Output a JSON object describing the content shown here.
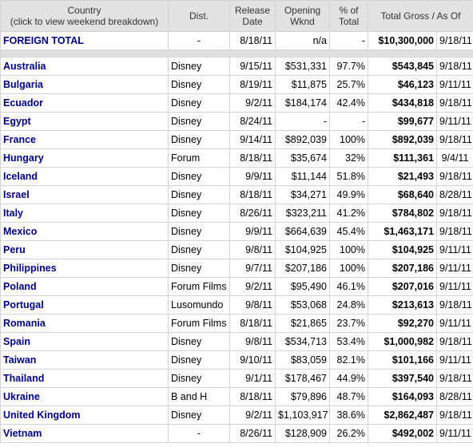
{
  "table": {
    "header": {
      "country": "Country",
      "country_note": "(click to view weekend breakdown)",
      "dist": "Dist.",
      "release": "Release Date",
      "opening": "Opening Wknd",
      "pct": "% of Total",
      "total": "Total Gross / As Of"
    },
    "total_row": [
      "FOREIGN TOTAL",
      "-",
      "8/18/11",
      "n/a",
      "-",
      "$10,300,000",
      "9/18/11"
    ],
    "rows": [
      [
        "Australia",
        "Disney",
        "9/15/11",
        "$531,331",
        "97.7%",
        "$543,845",
        "9/18/11"
      ],
      [
        "Bulgaria",
        "Disney",
        "8/19/11",
        "$11,875",
        "25.7%",
        "$46,123",
        "9/11/11"
      ],
      [
        "Ecuador",
        "Disney",
        "9/2/11",
        "$184,174",
        "42.4%",
        "$434,818",
        "9/18/11"
      ],
      [
        "Egypt",
        "Disney",
        "8/24/11",
        "-",
        "-",
        "$99,677",
        "9/11/11"
      ],
      [
        "France",
        "Disney",
        "9/14/11",
        "$892,039",
        "100%",
        "$892,039",
        "9/18/11"
      ],
      [
        "Hungary",
        "Forum",
        "8/18/11",
        "$35,674",
        "32%",
        "$111,361",
        "9/4/11"
      ],
      [
        "Iceland",
        "Disney",
        "9/9/11",
        "$11,144",
        "51.8%",
        "$21,493",
        "9/18/11"
      ],
      [
        "Israel",
        "Disney",
        "8/18/11",
        "$34,271",
        "49.9%",
        "$68,640",
        "8/28/11"
      ],
      [
        "Italy",
        "Disney",
        "8/26/11",
        "$323,211",
        "41.2%",
        "$784,802",
        "9/18/11"
      ],
      [
        "Mexico",
        "Disney",
        "9/9/11",
        "$664,639",
        "45.4%",
        "$1,463,171",
        "9/18/11"
      ],
      [
        "Peru",
        "Disney",
        "9/8/11",
        "$104,925",
        "100%",
        "$104,925",
        "9/11/11"
      ],
      [
        "Philippines",
        "Disney",
        "9/7/11",
        "$207,186",
        "100%",
        "$207,186",
        "9/11/11"
      ],
      [
        "Poland",
        "Forum Films",
        "9/2/11",
        "$95,490",
        "46.1%",
        "$207,016",
        "9/11/11"
      ],
      [
        "Portugal",
        "Lusomundo",
        "9/8/11",
        "$53,068",
        "24.8%",
        "$213,613",
        "9/18/11"
      ],
      [
        "Romania",
        "Forum Films",
        "8/18/11",
        "$21,865",
        "23.7%",
        "$92,270",
        "9/11/11"
      ],
      [
        "Spain",
        "Disney",
        "9/8/11",
        "$534,713",
        "53.4%",
        "$1,000,982",
        "9/18/11"
      ],
      [
        "Taiwan",
        "Disney",
        "9/10/11",
        "$83,059",
        "82.1%",
        "$101,166",
        "9/11/11"
      ],
      [
        "Thailand",
        "Disney",
        "9/1/11",
        "$178,467",
        "44.9%",
        "$397,540",
        "9/18/11"
      ],
      [
        "Ukraine",
        "B and H",
        "8/18/11",
        "$79,896",
        "48.7%",
        "$164,093",
        "8/28/11"
      ],
      [
        "United Kingdom",
        "Disney",
        "9/2/11",
        "$1,103,917",
        "38.6%",
        "$2,862,487",
        "9/18/11"
      ],
      [
        "Vietnam",
        "-",
        "8/26/11",
        "$128,909",
        "26.2%",
        "$492,002",
        "9/11/11"
      ]
    ]
  }
}
